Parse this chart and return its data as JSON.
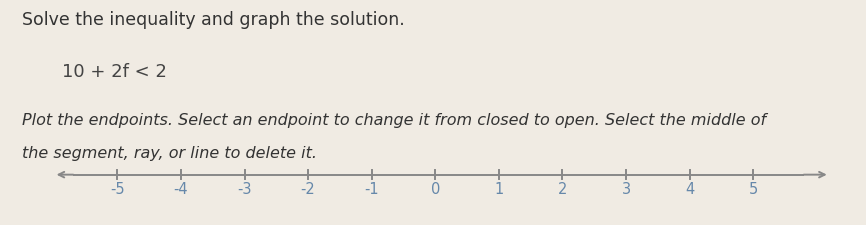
{
  "title_line1": "Solve the inequality and graph the solution.",
  "equation": "10 + 2f < 2",
  "instruction_line1": "Plot the endpoints. Select an endpoint to change it from closed to open. Select the middle of",
  "instruction_line2": "the segment, ray, or line to delete it.",
  "tick_labels": [
    "-5",
    "-4",
    "-3",
    "-2",
    "-1",
    "0",
    "1",
    "2",
    "3",
    "4",
    "5"
  ],
  "tick_values": [
    -5,
    -4,
    -3,
    -2,
    -1,
    0,
    1,
    2,
    3,
    4,
    5
  ],
  "bg_color": "#f0ebe3",
  "title_text_color": "#333333",
  "eq_text_color": "#444444",
  "instr_text_color": "#333333",
  "tick_label_color": "#6688aa",
  "line_color": "#888888",
  "title_fontsize": 12.5,
  "eq_fontsize": 13,
  "instr_fontsize": 11.5,
  "tick_fontsize": 10.5,
  "bottom_bar_color": "#55cc55",
  "bottom_bar_height": 0.022
}
